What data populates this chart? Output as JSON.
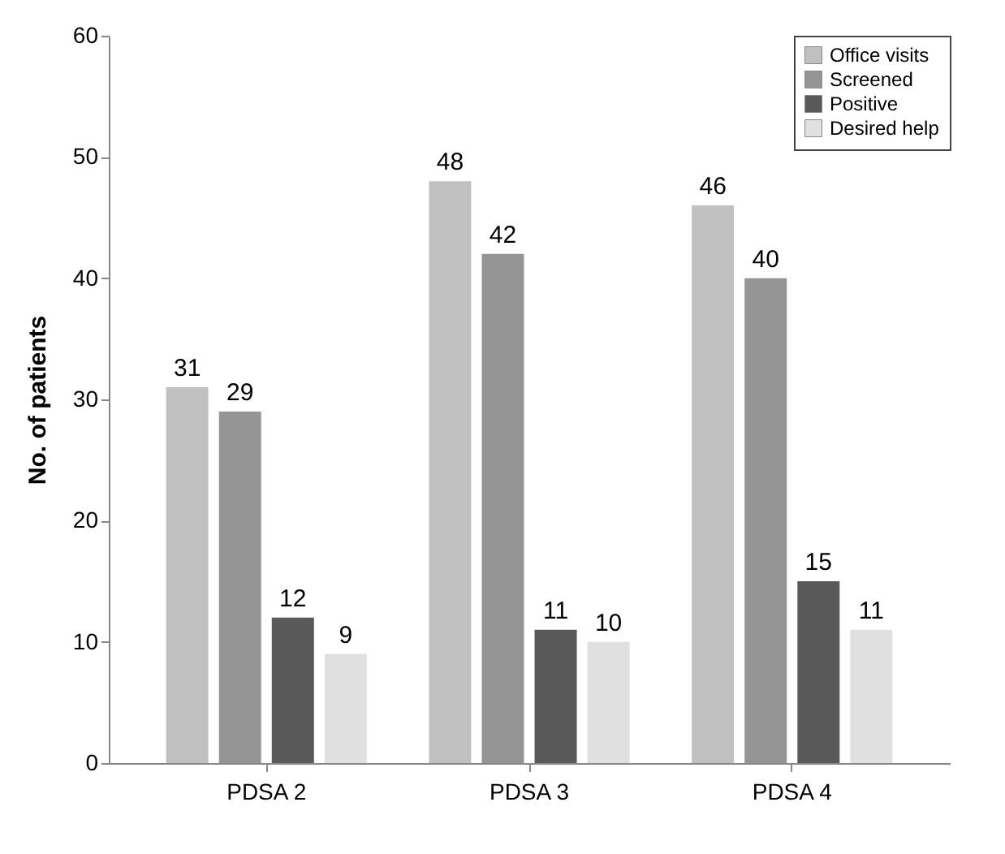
{
  "chart_data": {
    "type": "bar",
    "ylabel": "No. of patients",
    "categories": [
      "PDSA 2",
      "PDSA 3",
      "PDSA 4"
    ],
    "series": [
      {
        "name": "Office visits",
        "color": "#c0c0c0",
        "values": [
          31,
          48,
          46
        ]
      },
      {
        "name": "Screened",
        "color": "#959595",
        "values": [
          29,
          42,
          40
        ]
      },
      {
        "name": "Positive",
        "color": "#595959",
        "values": [
          12,
          11,
          15
        ]
      },
      {
        "name": "Desired help",
        "color": "#e0e0e0",
        "values": [
          9,
          10,
          11
        ]
      }
    ],
    "ylim": [
      0,
      60
    ],
    "yticks": [
      0,
      10,
      20,
      30,
      40,
      50,
      60
    ],
    "grid": false,
    "legend": "top right",
    "data_labels": true
  }
}
